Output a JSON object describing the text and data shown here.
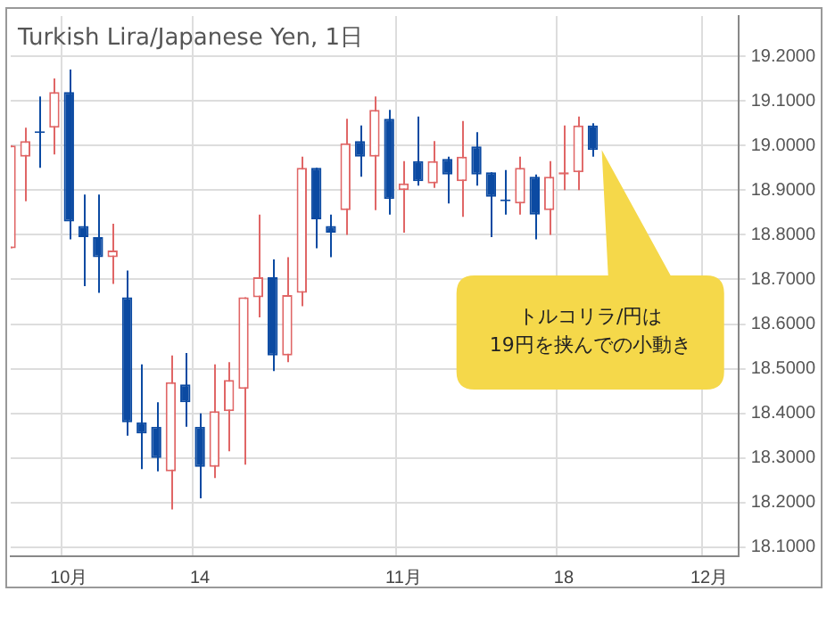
{
  "chart_data": {
    "type": "candlestick",
    "title": "Turkish Lira/Japanese Yen, 1日",
    "annotations": [
      "トルコリラ/円は\n19円を挟んでの小動き"
    ],
    "categories": [
      null,
      null,
      null,
      null,
      "10月",
      null,
      null,
      null,
      null,
      null,
      null,
      null,
      null,
      "14",
      null,
      null,
      null,
      null,
      null,
      null,
      null,
      null,
      null,
      null,
      null,
      null,
      null,
      "11月",
      null,
      null,
      null,
      null,
      null,
      null,
      null,
      null,
      null,
      null,
      "18",
      null,
      null,
      null,
      null,
      null,
      null,
      null,
      null,
      null,
      "12月",
      null,
      null
    ],
    "ohlc": [
      [
        18.77,
        19.0,
        18.77,
        19.0
      ],
      [
        18.975,
        19.04,
        18.875,
        19.01
      ],
      [
        19.028,
        19.11,
        18.95,
        19.028
      ],
      [
        19.04,
        19.15,
        18.98,
        19.12
      ],
      [
        19.12,
        19.17,
        18.79,
        18.83
      ],
      [
        18.82,
        18.89,
        18.685,
        18.795
      ],
      [
        18.795,
        18.89,
        18.67,
        18.75
      ],
      [
        18.75,
        18.825,
        18.69,
        18.765
      ],
      [
        18.66,
        18.72,
        18.35,
        18.38
      ],
      [
        18.38,
        18.51,
        18.275,
        18.355
      ],
      [
        18.37,
        18.425,
        18.27,
        18.3
      ],
      [
        18.27,
        18.53,
        18.185,
        18.47
      ],
      [
        18.465,
        18.535,
        18.37,
        18.425
      ],
      [
        18.37,
        18.4,
        18.21,
        18.28
      ],
      [
        18.28,
        18.51,
        18.255,
        18.405
      ],
      [
        18.405,
        18.515,
        18.315,
        18.475
      ],
      [
        18.455,
        18.66,
        18.285,
        18.66
      ],
      [
        18.66,
        18.845,
        18.615,
        18.705
      ],
      [
        18.705,
        18.745,
        18.495,
        18.53
      ],
      [
        18.53,
        18.75,
        18.515,
        18.665
      ],
      [
        18.67,
        18.975,
        18.64,
        18.95
      ],
      [
        18.95,
        18.95,
        18.77,
        18.835
      ],
      [
        18.82,
        18.845,
        18.75,
        18.805
      ],
      [
        18.855,
        19.06,
        18.8,
        19.005
      ],
      [
        19.01,
        19.045,
        18.93,
        18.975
      ],
      [
        18.975,
        19.11,
        18.855,
        19.08
      ],
      [
        19.06,
        19.08,
        18.845,
        18.88
      ],
      [
        18.9,
        18.965,
        18.805,
        18.915
      ],
      [
        18.965,
        19.065,
        18.91,
        18.92
      ],
      [
        18.915,
        19.01,
        18.905,
        18.965
      ],
      [
        18.97,
        18.975,
        18.87,
        18.935
      ],
      [
        18.92,
        19.055,
        18.84,
        18.975
      ],
      [
        18.998,
        19.03,
        18.91,
        18.935
      ],
      [
        18.94,
        18.94,
        18.795,
        18.885
      ],
      [
        18.875,
        18.945,
        18.845,
        18.875
      ],
      [
        18.87,
        18.975,
        18.845,
        18.95
      ],
      [
        18.93,
        18.935,
        18.79,
        18.845
      ],
      [
        18.855,
        18.965,
        18.8,
        18.93
      ],
      [
        18.935,
        19.045,
        18.9,
        18.94
      ],
      [
        18.94,
        19.065,
        18.9,
        19.045
      ],
      [
        19.045,
        19.05,
        18.975,
        18.99
      ],
      null,
      null,
      null,
      null,
      null,
      null,
      null,
      null,
      null,
      null
    ],
    "colors": [
      "#e06666",
      "#e06666",
      "#0b4aa2",
      "#e06666",
      "#0b4aa2",
      "#0b4aa2",
      "#0b4aa2",
      "#e06666",
      "#0b4aa2",
      "#0b4aa2",
      "#0b4aa2",
      "#e06666",
      "#0b4aa2",
      "#0b4aa2",
      "#e06666",
      "#e06666",
      "#e06666",
      "#e06666",
      "#0b4aa2",
      "#e06666",
      "#e06666",
      "#0b4aa2",
      "#0b4aa2",
      "#e06666",
      "#0b4aa2",
      "#e06666",
      "#0b4aa2",
      "#e06666",
      "#0b4aa2",
      "#e06666",
      "#0b4aa2",
      "#e06666",
      "#0b4aa2",
      "#0b4aa2",
      "#0b4aa2",
      "#e06666",
      "#0b4aa2",
      "#e06666",
      "#e06666",
      "#e06666",
      "#0b4aa2",
      null,
      null,
      null,
      null,
      null,
      null,
      null,
      null,
      null,
      null
    ],
    "ylim": [
      18.08,
      19.29
    ],
    "yticks": [
      {
        "value": 18.1,
        "label": "18.1000"
      },
      {
        "value": 18.2,
        "label": "18.2000"
      },
      {
        "value": 18.3,
        "label": "18.3000"
      },
      {
        "value": 18.4,
        "label": "18.4000"
      },
      {
        "value": 18.5,
        "label": "18.5000"
      },
      {
        "value": 18.6,
        "label": "18.6000"
      },
      {
        "value": 18.7,
        "label": "18.7000"
      },
      {
        "value": 18.8,
        "label": "18.8000"
      },
      {
        "value": 18.9,
        "label": "18.9000"
      },
      {
        "value": 19.0,
        "label": "19.0000"
      },
      {
        "value": 19.1,
        "label": "19.1000"
      },
      {
        "value": 19.2,
        "label": "19.2000"
      }
    ],
    "grid": true
  }
}
